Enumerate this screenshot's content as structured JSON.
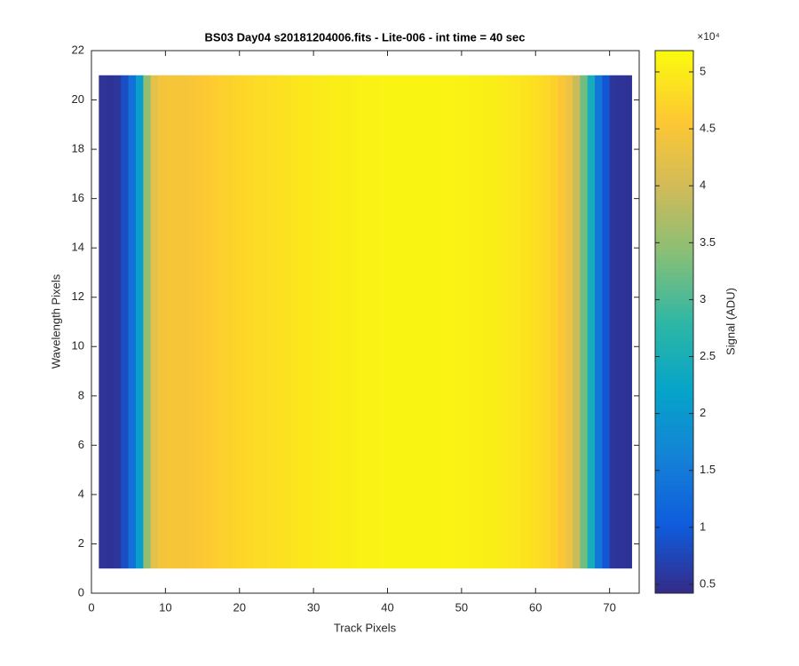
{
  "chart_data": {
    "type": "heatmap",
    "title": "BS03 Day04  s20181204006.fits - Lite-006 - int time = 40 sec",
    "x_label": "Track Pixels",
    "y_label": "Wavelength Pixels",
    "colorbar_label": "Signal (ADU)",
    "colorbar_multiplier": "×10⁴",
    "x": [
      1.5,
      2.5,
      3.5,
      4.5,
      5.5,
      6.5,
      7.5,
      8.5,
      9.5,
      10.5,
      11.5,
      12.5,
      13.5,
      14.5,
      15.5,
      16.5,
      17.5,
      18.5,
      19.5,
      20.5,
      21.5,
      22.5,
      23.5,
      24.5,
      25.5,
      26.5,
      27.5,
      28.5,
      29.5,
      30.5,
      31.5,
      32.5,
      33.5,
      34.5,
      35.5,
      36.5,
      37.5,
      38.5,
      39.5,
      40.5,
      41.5,
      42.5,
      43.5,
      44.5,
      45.5,
      46.5,
      47.5,
      48.5,
      49.5,
      50.5,
      51.5,
      52.5,
      53.5,
      54.5,
      55.5,
      56.5,
      57.5,
      58.5,
      59.5,
      60.5,
      61.5,
      62.5,
      63.5,
      64.5,
      65.5,
      66.5,
      67.5,
      68.5,
      69.5,
      70.5,
      71.5,
      72.5
    ],
    "values": [
      5300,
      5200,
      5600,
      8500,
      13500,
      21000,
      35000,
      42500,
      44500,
      44800,
      45000,
      44700,
      45200,
      45500,
      45800,
      46300,
      46800,
      47000,
      47300,
      47600,
      47800,
      48200,
      48400,
      48600,
      48800,
      48900,
      49300,
      49500,
      49700,
      49900,
      50100,
      50200,
      50300,
      50400,
      50600,
      50700,
      50800,
      50800,
      50900,
      51000,
      51000,
      51100,
      51000,
      51100,
      51000,
      51000,
      50900,
      50900,
      50800,
      50700,
      50600,
      50500,
      50400,
      50200,
      50000,
      49800,
      49500,
      49200,
      48800,
      48400,
      47800,
      47000,
      45500,
      43500,
      39500,
      32500,
      24500,
      14500,
      9500,
      5600,
      5300,
      5200
    ],
    "y_extent": [
      1,
      21
    ],
    "xlim": [
      0,
      74
    ],
    "ylim": [
      0,
      22
    ],
    "xticks": [
      0,
      10,
      20,
      30,
      40,
      50,
      60,
      70
    ],
    "yticks": [
      0,
      2,
      4,
      6,
      8,
      10,
      12,
      14,
      16,
      18,
      20,
      22
    ],
    "clim": [
      4220,
      51870
    ],
    "cticks": [
      {
        "value": 5000,
        "label": "0.5"
      },
      {
        "value": 10000,
        "label": "1"
      },
      {
        "value": 15000,
        "label": "1.5"
      },
      {
        "value": 20000,
        "label": "2"
      },
      {
        "value": 25000,
        "label": "2.5"
      },
      {
        "value": 30000,
        "label": "3"
      },
      {
        "value": 35000,
        "label": "3.5"
      },
      {
        "value": 40000,
        "label": "4"
      },
      {
        "value": 45000,
        "label": "4.5"
      },
      {
        "value": 50000,
        "label": "5"
      }
    ],
    "colormap": [
      "#352a87",
      "#0f5cdd",
      "#1481d6",
      "#06a4ca",
      "#2eb7a4",
      "#87bf77",
      "#d1bb59",
      "#fec832",
      "#f9fb0e"
    ]
  }
}
